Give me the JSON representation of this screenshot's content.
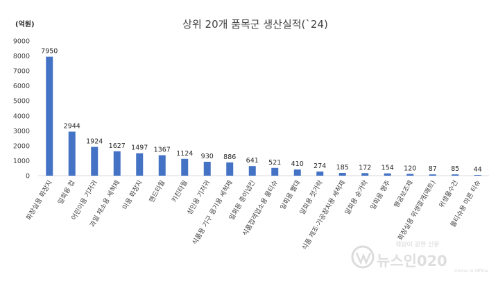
{
  "chart_data": {
    "type": "bar",
    "title": "상위 20개 품목군 생산실적(`24)",
    "unit": "(억원)",
    "categories": [
      "화장실용 화장지",
      "일회용 컵",
      "어린이용 기저귀",
      "과일 채소용 세척제",
      "미용 화장지",
      "핸드타월",
      "키친타월",
      "성인용 기저귀",
      "식품용 기구 용기용 세척제",
      "일회용 종이냅킨",
      "식품접객업소용 물티슈",
      "일회용 빨대",
      "일회용 젓가락",
      "식품 제조·가공장치용 세척제",
      "일회용 숟가락",
      "일회용 행주",
      "행굼보조제",
      "화장실용 위생깔개(매트)",
      "위생물수건",
      "물티슈용 마른 티슈"
    ],
    "values": [
      7950,
      2944,
      1924,
      1627,
      1497,
      1367,
      1124,
      930,
      886,
      641,
      521,
      410,
      274,
      185,
      172,
      154,
      120,
      87,
      85,
      44
    ],
    "ylim": [
      0,
      9000
    ],
    "yticks": [
      0,
      1000,
      2000,
      3000,
      4000,
      5000,
      6000,
      7000,
      8000,
      9000
    ],
    "grid": false,
    "bar_color": "#4472C4"
  },
  "watermark": {
    "tagline": "책임이 강한 신문",
    "brand": "뉴스인020",
    "sub": "Online to Offline"
  }
}
